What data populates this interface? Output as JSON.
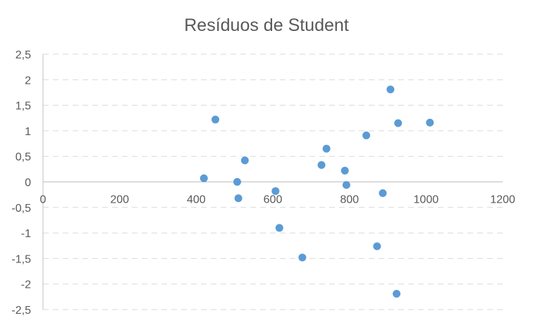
{
  "chart_data": {
    "type": "scatter",
    "title": "Resíduos de Student",
    "xlabel": "",
    "ylabel": "",
    "xlim": [
      0,
      1200
    ],
    "ylim": [
      -2.5,
      2.5
    ],
    "x_ticks": [
      0,
      200,
      400,
      600,
      800,
      1000,
      1200
    ],
    "y_ticks": [
      2.5,
      2,
      1.5,
      1,
      0.5,
      0,
      -0.5,
      -1,
      -1.5,
      -2,
      -2.5
    ],
    "x_tick_labels": [
      "0",
      "200",
      "400",
      "600",
      "800",
      "1000",
      "1200"
    ],
    "y_tick_labels": [
      "2,5",
      "2",
      "1,5",
      "1",
      "0,5",
      "0",
      "-0,5",
      "-1",
      "-1,5",
      "-2",
      "-2,5"
    ],
    "grid": true,
    "legend": "none",
    "series": [
      {
        "color": "#5b9bd5",
        "points": [
          {
            "x": 420,
            "y": 0.07
          },
          {
            "x": 450,
            "y": 1.22
          },
          {
            "x": 507,
            "y": 0.0
          },
          {
            "x": 510,
            "y": -0.32
          },
          {
            "x": 527,
            "y": 0.42
          },
          {
            "x": 607,
            "y": -0.18
          },
          {
            "x": 617,
            "y": -0.9
          },
          {
            "x": 677,
            "y": -1.48
          },
          {
            "x": 727,
            "y": 0.33
          },
          {
            "x": 740,
            "y": 0.65
          },
          {
            "x": 788,
            "y": 0.22
          },
          {
            "x": 792,
            "y": -0.06
          },
          {
            "x": 844,
            "y": 0.91
          },
          {
            "x": 872,
            "y": -1.26
          },
          {
            "x": 887,
            "y": -0.22
          },
          {
            "x": 907,
            "y": 1.81
          },
          {
            "x": 923,
            "y": -2.19
          },
          {
            "x": 927,
            "y": 1.15
          },
          {
            "x": 1010,
            "y": 1.16
          }
        ]
      }
    ]
  },
  "colors": {
    "marker": "#5b9bd5",
    "grid": "#d9d9d9",
    "axis": "#bfbfbf",
    "text": "#595959"
  }
}
